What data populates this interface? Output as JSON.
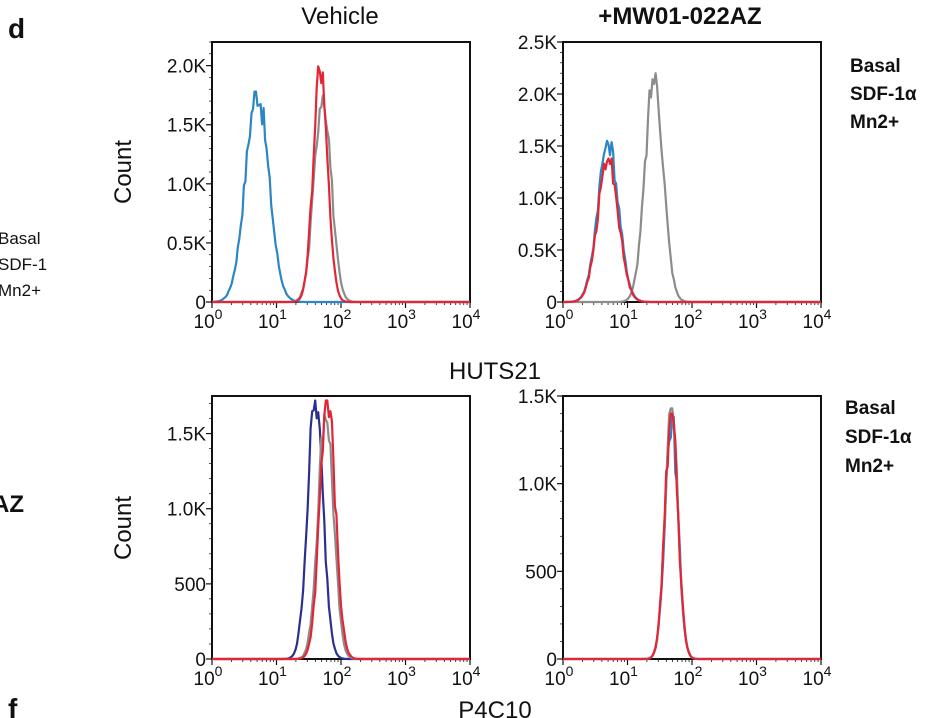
{
  "figure": {
    "panel_letter": "d",
    "bottom_letter": "f",
    "left_fragments": [
      "Basal",
      "SDF-1",
      "Mn2+",
      "AZ"
    ],
    "col_titles": [
      "Vehicle",
      "+MW01-022AZ"
    ],
    "row_xlabels": [
      "HUTS21",
      "P4C10"
    ],
    "ylabel": "Count",
    "legend": [
      {
        "label": "Basal",
        "color": "#2b86c5"
      },
      {
        "label": "SDF-1α",
        "color": "#e32636"
      },
      {
        "label": "Mn2+",
        "color": "#8c8c8c"
      }
    ]
  },
  "chart_data": [
    {
      "type": "line",
      "panel": "HUTS21 Vehicle",
      "title": "Vehicle",
      "xlabel": "",
      "ylabel": "Count",
      "xscale": "log",
      "xlim": [
        1,
        10000
      ],
      "ylim": [
        0,
        2200
      ],
      "xticks": [
        "10^0",
        "10^1",
        "10^2",
        "10^3",
        "10^4"
      ],
      "yticks": [
        {
          "v": 0,
          "label": "0"
        },
        {
          "v": 500,
          "label": "0.5K"
        },
        {
          "v": 1000,
          "label": "1.0K"
        },
        {
          "v": 1500,
          "label": "1.5K"
        },
        {
          "v": 2000,
          "label": "2.0K"
        }
      ],
      "series": [
        {
          "name": "Basal",
          "color": "#2b86c5",
          "peak_x": 5,
          "peak_y": 1780,
          "width": 0.18
        },
        {
          "name": "SDF-1α",
          "color": "#e32636",
          "peak_x": 48,
          "peak_y": 2000,
          "width": 0.11
        },
        {
          "name": "Mn2+",
          "color": "#8c8c8c",
          "peak_x": 52,
          "peak_y": 1780,
          "width": 0.13
        }
      ]
    },
    {
      "type": "line",
      "panel": "HUTS21 +MW01-022AZ",
      "title": "+MW01-022AZ",
      "xlabel": "",
      "ylabel": "",
      "xscale": "log",
      "xlim": [
        1,
        10000
      ],
      "ylim": [
        0,
        2500
      ],
      "xticks": [
        "10^0",
        "10^1",
        "10^2",
        "10^3",
        "10^4"
      ],
      "yticks": [
        {
          "v": 0,
          "label": "0"
        },
        {
          "v": 500,
          "label": "0.5K"
        },
        {
          "v": 1000,
          "label": "1.0K"
        },
        {
          "v": 1500,
          "label": "1.5K"
        },
        {
          "v": 2000,
          "label": "2.0K"
        },
        {
          "v": 2500,
          "label": "2.5K"
        }
      ],
      "series": [
        {
          "name": "Basal",
          "color": "#2b86c5",
          "peak_x": 5,
          "peak_y": 1550,
          "width": 0.16
        },
        {
          "name": "SDF-1α",
          "color": "#e32636",
          "peak_x": 5,
          "peak_y": 1380,
          "width": 0.16
        },
        {
          "name": "Mn2+",
          "color": "#8c8c8c",
          "peak_x": 26,
          "peak_y": 2200,
          "width": 0.14
        }
      ]
    },
    {
      "type": "line",
      "panel": "P4C10 Vehicle",
      "title": "",
      "xlabel": "",
      "ylabel": "Count",
      "xscale": "log",
      "xlim": [
        1,
        10000
      ],
      "ylim": [
        0,
        1750
      ],
      "xticks": [
        "10^0",
        "10^1",
        "10^2",
        "10^3",
        "10^4"
      ],
      "yticks": [
        {
          "v": 0,
          "label": "0"
        },
        {
          "v": 500,
          "label": "500"
        },
        {
          "v": 1000,
          "label": "1.0K"
        },
        {
          "v": 1500,
          "label": "1.5K"
        }
      ],
      "series": [
        {
          "name": "Basal",
          "color": "#2b2f8f",
          "peak_x": 40,
          "peak_y": 1720,
          "width": 0.12
        },
        {
          "name": "SDF-1α",
          "color": "#e32636",
          "peak_x": 62,
          "peak_y": 1720,
          "width": 0.12
        },
        {
          "name": "Mn2+",
          "color": "#8c8c8c",
          "peak_x": 58,
          "peak_y": 1640,
          "width": 0.12
        }
      ]
    },
    {
      "type": "line",
      "panel": "P4C10 +MW01-022AZ",
      "title": "",
      "xlabel": "",
      "ylabel": "",
      "xscale": "log",
      "xlim": [
        1,
        10000
      ],
      "ylim": [
        0,
        1500
      ],
      "xticks": [
        "10^0",
        "10^1",
        "10^2",
        "10^3",
        "10^4"
      ],
      "yticks": [
        {
          "v": 0,
          "label": "0"
        },
        {
          "v": 500,
          "label": "500"
        },
        {
          "v": 1000,
          "label": "1.0K"
        },
        {
          "v": 1500,
          "label": "1.5K"
        }
      ],
      "series": [
        {
          "name": "Basal",
          "color": "#2b86c5",
          "peak_x": 48,
          "peak_y": 1380,
          "width": 0.1
        },
        {
          "name": "SDF-1α",
          "color": "#e32636",
          "peak_x": 48,
          "peak_y": 1400,
          "width": 0.1
        },
        {
          "name": "Mn2+",
          "color": "#8c8c8c",
          "peak_x": 48,
          "peak_y": 1430,
          "width": 0.1
        }
      ]
    }
  ]
}
